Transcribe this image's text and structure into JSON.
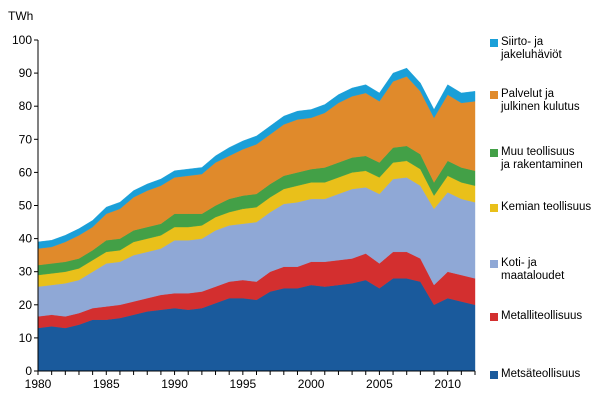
{
  "chart_data": {
    "type": "area",
    "stacked": true,
    "ylabel": "TWh",
    "ylim": [
      0,
      100
    ],
    "yticks": [
      0,
      10,
      20,
      30,
      40,
      50,
      60,
      70,
      80,
      90,
      100
    ],
    "xlim": [
      1980,
      2012
    ],
    "xticks": [
      1980,
      1985,
      1990,
      1995,
      2000,
      2005,
      2010
    ],
    "grid": false,
    "legend_position": "right",
    "x": [
      1980,
      1981,
      1982,
      1983,
      1984,
      1985,
      1986,
      1987,
      1988,
      1989,
      1990,
      1991,
      1992,
      1993,
      1994,
      1995,
      1996,
      1997,
      1998,
      1999,
      2000,
      2001,
      2002,
      2003,
      2004,
      2005,
      2006,
      2007,
      2008,
      2009,
      2010,
      2011,
      2012
    ],
    "series": [
      {
        "name": "Metsäteollisuus",
        "color": "#1a5a9c",
        "values": [
          13,
          13.5,
          13,
          14,
          15.5,
          15.5,
          16,
          17,
          18,
          18.5,
          19,
          18.5,
          19,
          20.5,
          22,
          22,
          21.5,
          24,
          25,
          25,
          26,
          25.5,
          26,
          26.5,
          27.5,
          25,
          28,
          28,
          27,
          20,
          22,
          21,
          20
        ]
      },
      {
        "name": "Metalliteollisuus",
        "color": "#d32f2f",
        "values": [
          3.5,
          3.5,
          3.5,
          3.5,
          3.5,
          4,
          4,
          4,
          4,
          4.5,
          4.5,
          5,
          5,
          5,
          5,
          5.5,
          5.5,
          6,
          6.5,
          6.5,
          7,
          7.5,
          7.5,
          7.5,
          8,
          7.5,
          8,
          8,
          7,
          6,
          8,
          8,
          8
        ]
      },
      {
        "name": "Koti- ja\nmaataloudet",
        "color": "#8fa8d6",
        "values": [
          9,
          9,
          10,
          10,
          11,
          13,
          13,
          14,
          14,
          14,
          16,
          16,
          16,
          17,
          17,
          17,
          18,
          18,
          19,
          19.5,
          19,
          19,
          20,
          21,
          20,
          21,
          22,
          22.5,
          22,
          23,
          24,
          23,
          23
        ]
      },
      {
        "name": "Kemian teollisuus",
        "color": "#e9c01a",
        "values": [
          3.5,
          3.5,
          3.5,
          3.5,
          3.5,
          3.5,
          3.5,
          4,
          4,
          4,
          4,
          4,
          4,
          4,
          4,
          4.5,
          4.5,
          4.5,
          4.5,
          5,
          5,
          5,
          5,
          5,
          5,
          5,
          5,
          5,
          5,
          4,
          5,
          5,
          5
        ]
      },
      {
        "name": "Muu teollisuus\nja rakentaminen",
        "color": "#43a047",
        "values": [
          3,
          3,
          3,
          3,
          3,
          3.5,
          3.5,
          3.5,
          3.5,
          3.5,
          4,
          4,
          3.5,
          3.5,
          4,
          4,
          4,
          4,
          4,
          4,
          4,
          4.5,
          4.5,
          4.5,
          4.5,
          4.5,
          4.5,
          4.5,
          4.5,
          4,
          4.5,
          4.5,
          4.5
        ]
      },
      {
        "name": "Palvelut ja\njulkinen kulutus",
        "color": "#e08a2b",
        "values": [
          5,
          5,
          6,
          7,
          7,
          8,
          9,
          10,
          11,
          11.5,
          11,
          11.5,
          12,
          13,
          13,
          14,
          15,
          15,
          15.5,
          16,
          15.5,
          16.5,
          18,
          18.5,
          19,
          18.5,
          20,
          21,
          19,
          19.5,
          20,
          19.5,
          21
        ]
      },
      {
        "name": "Siirto- ja\njakeluhäviöt",
        "color": "#1a9fd8",
        "values": [
          2,
          2,
          2,
          2,
          2,
          2,
          2,
          2,
          2,
          2,
          2,
          2,
          2,
          2,
          2.5,
          2.5,
          2.5,
          2.5,
          2.5,
          2.5,
          2.5,
          2.5,
          2.5,
          2.5,
          2.5,
          2.5,
          2.5,
          2.5,
          2.5,
          2.5,
          3,
          3,
          3
        ]
      }
    ]
  }
}
